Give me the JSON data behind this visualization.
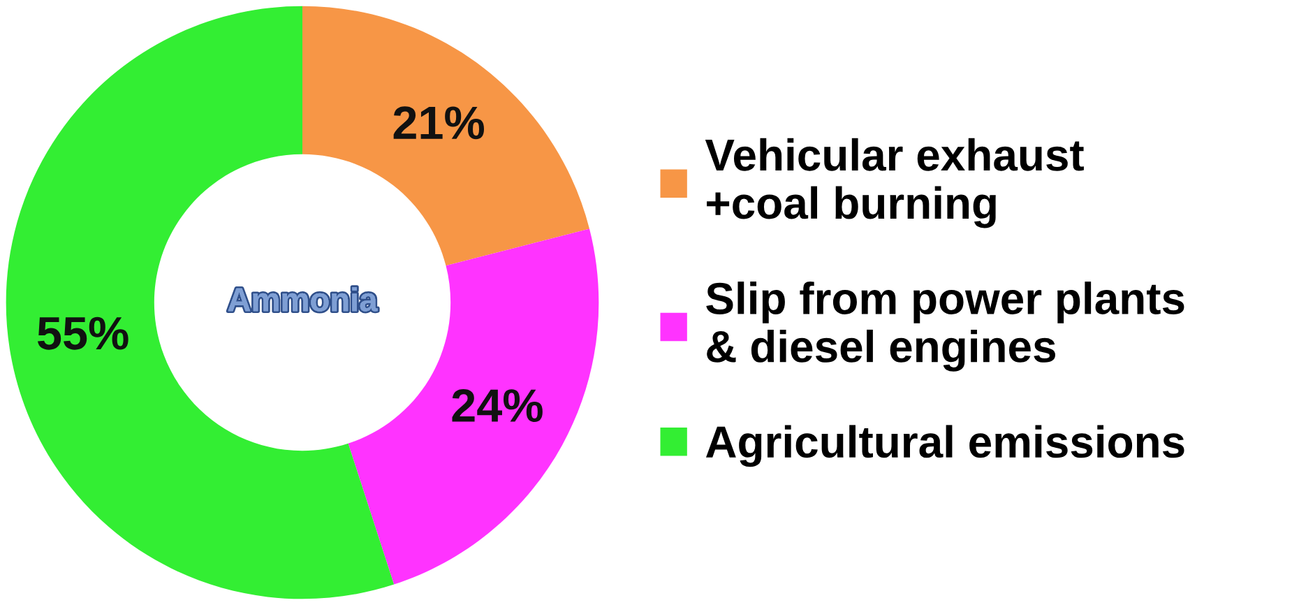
{
  "chart_data": {
    "type": "donut",
    "categories": [
      "Vehicular exhaust\n+coal burning",
      "Slip from power plants\n& diesel engines",
      "Agricultural emissions"
    ],
    "values": [
      21,
      24,
      55
    ],
    "colors": [
      "#f79646",
      "#ff33ff",
      "#33ee33"
    ],
    "value_labels": [
      "21%",
      "24%",
      "55%"
    ],
    "annotations": [
      "Ammonia"
    ],
    "legend": "right"
  }
}
